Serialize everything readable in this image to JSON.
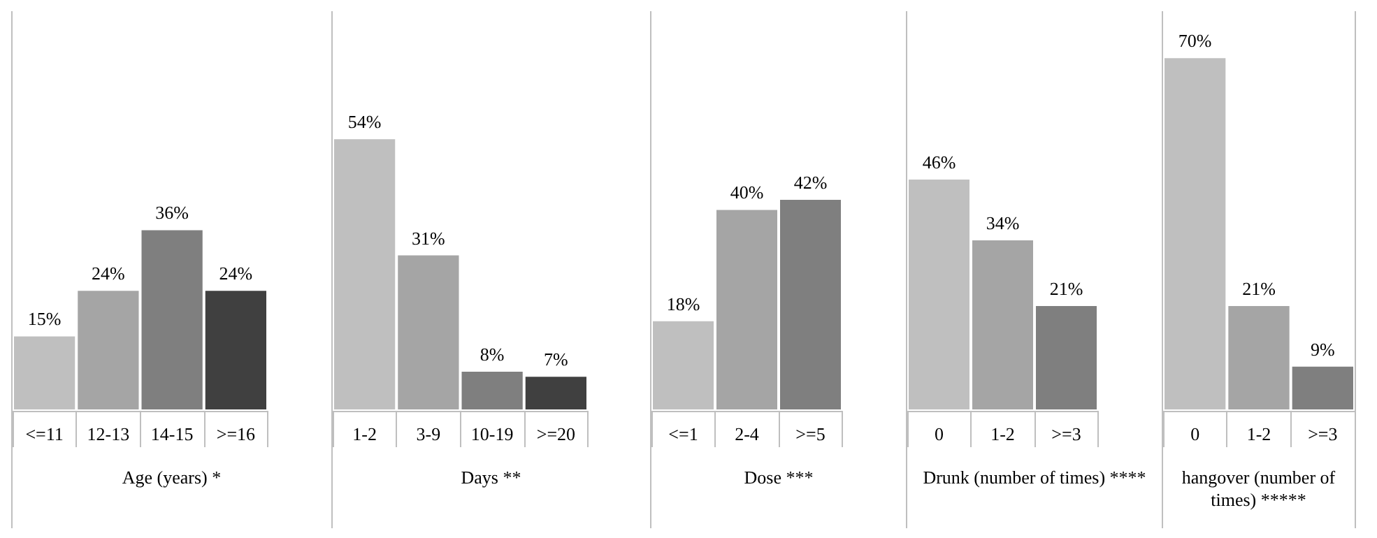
{
  "chart_data": [
    {
      "type": "bar",
      "xlabel": "Age (years) *",
      "categories": [
        "<=11",
        "12-13",
        "14-15",
        ">=16"
      ],
      "values": [
        15,
        24,
        36,
        24
      ],
      "value_labels": [
        "15%",
        "24%",
        "36%",
        "24%"
      ],
      "colors": [
        "#bfbfbf",
        "#a5a5a5",
        "#7f7f7f",
        "#404040"
      ],
      "data_labels": true,
      "grid": false
    },
    {
      "type": "bar",
      "xlabel": "Days **",
      "categories": [
        "1-2",
        "3-9",
        "10-19",
        ">=20"
      ],
      "values": [
        54,
        31,
        8,
        7
      ],
      "value_labels": [
        "54%",
        "31%",
        "8%",
        "7%"
      ],
      "colors": [
        "#bfbfbf",
        "#a5a5a5",
        "#7f7f7f",
        "#404040"
      ],
      "data_labels": true,
      "grid": false
    },
    {
      "type": "bar",
      "xlabel": "Dose ***",
      "categories": [
        "<=1",
        "2-4",
        ">=5"
      ],
      "values": [
        18,
        40,
        42
      ],
      "value_labels": [
        "18%",
        "40%",
        "42%"
      ],
      "colors": [
        "#bfbfbf",
        "#a5a5a5",
        "#7f7f7f"
      ],
      "data_labels": true,
      "grid": false
    },
    {
      "type": "bar",
      "xlabel": "Drunk (number of times) ****",
      "categories": [
        "0",
        "1-2",
        ">=3"
      ],
      "values": [
        46,
        34,
        21
      ],
      "value_labels": [
        "46%",
        "34%",
        "21%"
      ],
      "colors": [
        "#bfbfbf",
        "#a5a5a5",
        "#7f7f7f"
      ],
      "data_labels": true,
      "grid": false
    },
    {
      "type": "bar",
      "xlabel": "hangover  (number of times) *****",
      "categories": [
        "0",
        "1-2",
        ">=3"
      ],
      "values": [
        70,
        21,
        9
      ],
      "value_labels": [
        "70%",
        "21%",
        "9%"
      ],
      "colors": [
        "#bfbfbf",
        "#a5a5a5",
        "#7f7f7f"
      ],
      "data_labels": true,
      "grid": false
    }
  ]
}
